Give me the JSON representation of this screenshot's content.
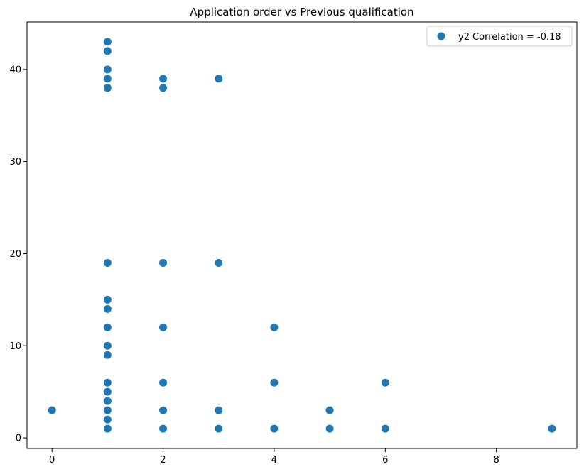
{
  "chart_data": {
    "type": "scatter",
    "title": "Application order vs Previous qualification",
    "xlabel": "",
    "ylabel": "",
    "xlim": [
      -0.45,
      9.45
    ],
    "ylim": [
      -1.15,
      45.15
    ],
    "xticks": [
      0,
      2,
      4,
      6,
      8
    ],
    "yticks": [
      0,
      10,
      20,
      30,
      40
    ],
    "grid": false,
    "legend_position": "top-right",
    "series": [
      {
        "name": "y2 Correlation = -0.18",
        "color": "#1f77b4",
        "points": [
          [
            0,
            3
          ],
          [
            1,
            1
          ],
          [
            1,
            2
          ],
          [
            1,
            3
          ],
          [
            1,
            4
          ],
          [
            1,
            5
          ],
          [
            1,
            6
          ],
          [
            1,
            9
          ],
          [
            1,
            10
          ],
          [
            1,
            12
          ],
          [
            1,
            14
          ],
          [
            1,
            15
          ],
          [
            1,
            19
          ],
          [
            1,
            38
          ],
          [
            1,
            39
          ],
          [
            1,
            40
          ],
          [
            1,
            42
          ],
          [
            1,
            43
          ],
          [
            2,
            1
          ],
          [
            2,
            3
          ],
          [
            2,
            6
          ],
          [
            2,
            12
          ],
          [
            2,
            19
          ],
          [
            2,
            38
          ],
          [
            2,
            39
          ],
          [
            3,
            1
          ],
          [
            3,
            3
          ],
          [
            3,
            19
          ],
          [
            3,
            39
          ],
          [
            4,
            1
          ],
          [
            4,
            6
          ],
          [
            4,
            12
          ],
          [
            5,
            1
          ],
          [
            5,
            3
          ],
          [
            6,
            1
          ],
          [
            6,
            6
          ],
          [
            9,
            1
          ]
        ]
      }
    ]
  }
}
